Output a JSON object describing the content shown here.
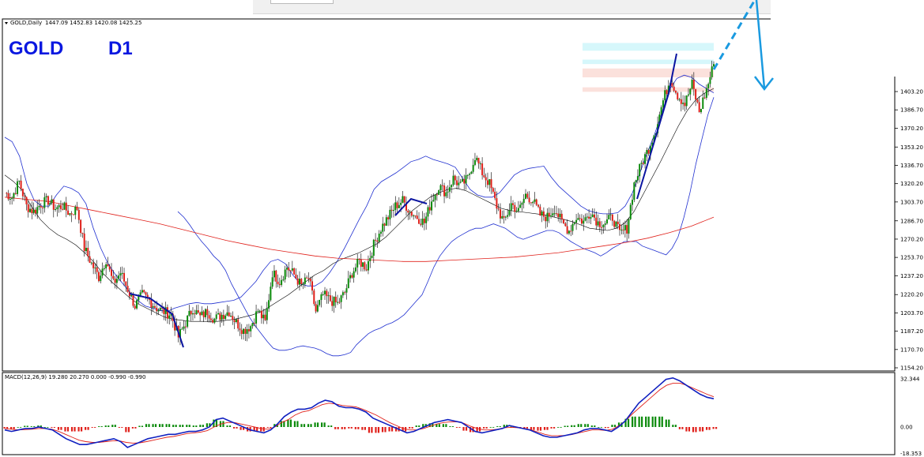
{
  "chart_data": [
    {
      "type": "candlestick",
      "symbol_label": "GOLD,Daily",
      "ohlc_label": "1447.09 1452.83 1420.08 1425.25",
      "title_symbol": "GOLD",
      "title_timeframe": "D1",
      "ylim": [
        1154.2,
        1419.7
      ],
      "y_ticks": [
        "1403.20",
        "1386.70",
        "1370.20",
        "1353.20",
        "1336.70",
        "1320.20",
        "1303.70",
        "1286.70",
        "1270.20",
        "1253.70",
        "1237.20",
        "1220.20",
        "1203.70",
        "1187.20",
        "1170.70",
        "1154.20"
      ],
      "y_tick_values": [
        1403.2,
        1386.7,
        1370.2,
        1353.2,
        1336.7,
        1320.2,
        1303.7,
        1286.7,
        1270.2,
        1253.7,
        1237.2,
        1220.2,
        1203.7,
        1187.2,
        1170.7,
        1154.2
      ],
      "colors": {
        "up": "#0a8a0a",
        "down": "#e0201a",
        "wick": "#000000",
        "bands": "#2030d0",
        "mid_band": "#000000",
        "long_ma": "#e0201a",
        "trend": "#0a14a0",
        "arrow": "#1a9ae0"
      },
      "price_path": [
        1312,
        1308,
        1322,
        1300,
        1295,
        1302,
        1305,
        1298,
        1300,
        1293,
        1298,
        1262,
        1248,
        1236,
        1252,
        1230,
        1240,
        1225,
        1210,
        1220,
        1215,
        1208,
        1205,
        1202,
        1182,
        1195,
        1208,
        1200,
        1205,
        1198,
        1202,
        1205,
        1195,
        1188,
        1192,
        1206,
        1195,
        1240,
        1232,
        1245,
        1238,
        1228,
        1235,
        1205,
        1220,
        1215,
        1212,
        1222,
        1240,
        1250,
        1245,
        1265,
        1280,
        1290,
        1300,
        1305,
        1295,
        1290,
        1285,
        1305,
        1318,
        1312,
        1325,
        1318,
        1325,
        1345,
        1330,
        1320,
        1300,
        1285,
        1302,
        1295,
        1310,
        1305,
        1292,
        1290,
        1298,
        1285,
        1278,
        1290,
        1286,
        1295,
        1285,
        1285,
        1290,
        1275,
        1280,
        1320,
        1338,
        1352,
        1370,
        1395,
        1415,
        1400,
        1392,
        1410,
        1385,
        1405,
        1428
      ],
      "upper_band": [
        1362,
        1358,
        1345,
        1320,
        1305,
        1300,
        1300,
        1310,
        1318,
        1316,
        1312,
        1302,
        1280,
        1262,
        1248,
        1238,
        1230,
        1222,
        1215,
        1210,
        1208,
        1206,
        1205,
        1208,
        1210,
        1212,
        1213,
        1212,
        1212,
        1213,
        1214,
        1215,
        1218,
        1225,
        1232,
        1242,
        1250,
        1252,
        1248,
        1238,
        1230,
        1228,
        1228,
        1232,
        1240,
        1250,
        1262,
        1275,
        1288,
        1300,
        1315,
        1322,
        1326,
        1330,
        1335,
        1340,
        1342,
        1345,
        1342,
        1340,
        1338,
        1335,
        1325,
        1315,
        1310,
        1308,
        1308,
        1312,
        1320,
        1328,
        1332,
        1334,
        1335,
        1336,
        1326,
        1318,
        1312,
        1306,
        1300,
        1296,
        1294,
        1293,
        1293,
        1294,
        1300,
        1312,
        1330,
        1348,
        1365,
        1385,
        1405,
        1415,
        1418,
        1416,
        1410,
        1406,
        1402
      ],
      "lower_band": [
        1295,
        1290,
        1283,
        1275,
        1268,
        1262,
        1255,
        1250,
        1242,
        1230,
        1220,
        1210,
        1200,
        1192,
        1185,
        1178,
        1172,
        1170,
        1170,
        1171,
        1173,
        1174,
        1173,
        1172,
        1170,
        1167,
        1165,
        1165,
        1166,
        1168,
        1175,
        1180,
        1185,
        1188,
        1190,
        1193,
        1195,
        1198,
        1202,
        1208,
        1214,
        1220,
        1232,
        1245,
        1255,
        1262,
        1268,
        1272,
        1275,
        1278,
        1280,
        1280,
        1282,
        1284,
        1282,
        1280,
        1276,
        1272,
        1270,
        1272,
        1274,
        1276,
        1278,
        1278,
        1276,
        1272,
        1268,
        1265,
        1262,
        1260,
        1258,
        1255,
        1258,
        1262,
        1265,
        1268,
        1268,
        1268,
        1264,
        1262,
        1260,
        1258,
        1256,
        1262,
        1272,
        1290,
        1312,
        1338,
        1360,
        1382,
        1398
      ],
      "mid_band": [
        1328,
        1322,
        1314,
        1300,
        1288,
        1280,
        1274,
        1270,
        1265,
        1258,
        1250,
        1240,
        1232,
        1225,
        1218,
        1212,
        1208,
        1204,
        1200,
        1198,
        1197,
        1196,
        1196,
        1196,
        1196,
        1197,
        1198,
        1200,
        1202,
        1205,
        1210,
        1215,
        1220,
        1226,
        1232,
        1238,
        1242,
        1248,
        1252,
        1255,
        1258,
        1262,
        1266,
        1272,
        1280,
        1288,
        1296,
        1302,
        1308,
        1312,
        1315,
        1316,
        1314,
        1310,
        1306,
        1302,
        1298,
        1296,
        1295,
        1294,
        1293,
        1292,
        1290,
        1288,
        1286,
        1283,
        1280,
        1279,
        1278,
        1280,
        1285,
        1295,
        1310,
        1325,
        1340,
        1356,
        1372,
        1386,
        1396,
        1402,
        1406
      ],
      "long_ma": [
        1308,
        1306,
        1304,
        1300,
        1296,
        1292,
        1288,
        1284,
        1279,
        1274,
        1269,
        1265,
        1261,
        1258,
        1255,
        1253,
        1252,
        1251,
        1250,
        1250,
        1251,
        1252,
        1253,
        1254,
        1256,
        1258,
        1261,
        1264,
        1267,
        1271,
        1276,
        1282,
        1290
      ],
      "fib_zones": [
        {
          "from": 1447,
          "to": 1440,
          "color": "#d6f7fb"
        },
        {
          "from": 1432,
          "to": 1428,
          "color": "#d6f7fb"
        },
        {
          "from": 1424,
          "to": 1416,
          "color": "#fbe1dc"
        },
        {
          "from": 1407,
          "to": 1403,
          "color": "#fbe1dc"
        }
      ]
    },
    {
      "type": "macd",
      "label": "MACD(12,26,9) 19.280 20.270 0.000 -0.990 -0.990",
      "ylim": [
        -18.353,
        32.344
      ],
      "y_ticks": [
        "32.344",
        "0.00",
        "-18.353"
      ],
      "y_tick_values": [
        32.344,
        0.0,
        -18.353
      ],
      "colors": {
        "macd": "#1020c0",
        "signal": "#e0201a",
        "hist_up": "#0a8a0a",
        "hist_down": "#e0201a"
      },
      "macd_line": [
        -2,
        -3,
        -2,
        -1,
        -1,
        0,
        -1,
        -2,
        -5,
        -8,
        -10,
        -12,
        -12,
        -11,
        -10,
        -9,
        -8,
        -10,
        -14,
        -12,
        -10,
        -8,
        -7,
        -6,
        -5,
        -5,
        -4,
        -3,
        -3,
        -2,
        0,
        5,
        6,
        4,
        2,
        0,
        -2,
        -3,
        -4,
        -2,
        2,
        7,
        10,
        12,
        12,
        13,
        16,
        18,
        17,
        14,
        13,
        13,
        12,
        10,
        6,
        4,
        2,
        0,
        -2,
        -4,
        -3,
        -1,
        1,
        3,
        4,
        5,
        4,
        3,
        0,
        -3,
        -4,
        -3,
        -2,
        -1,
        1,
        0,
        -1,
        -2,
        -4,
        -6,
        -7,
        -7,
        -6,
        -5,
        -4,
        -2,
        -1,
        -1,
        -2,
        -3,
        0,
        4,
        10,
        16,
        20,
        24,
        28,
        32,
        33,
        31,
        28,
        25,
        22,
        20,
        19
      ],
      "signal_line": [
        -1,
        -1.5,
        -2,
        -1.8,
        -1.5,
        -1,
        -1,
        -1.5,
        -3,
        -5,
        -7,
        -9,
        -10,
        -10.5,
        -10.5,
        -10,
        -9.5,
        -9.5,
        -10.5,
        -11,
        -10.8,
        -10,
        -9,
        -8,
        -7,
        -6.5,
        -5.5,
        -4.5,
        -4,
        -3.5,
        -2.5,
        0,
        2,
        3,
        3,
        2,
        1,
        0,
        -1,
        -1.5,
        0,
        3,
        5,
        8,
        10,
        11,
        13,
        15,
        16,
        15.5,
        14.5,
        14,
        13.5,
        12,
        10,
        8,
        5.5,
        3,
        1,
        -1,
        -2,
        -2,
        -1,
        0.5,
        2,
        3,
        3.5,
        3.5,
        2.5,
        0.5,
        -1,
        -2,
        -2,
        -1.5,
        -0.5,
        -0.2,
        -0.5,
        -1,
        -2,
        -3.5,
        -5,
        -6,
        -6,
        -5.8,
        -5.2,
        -4,
        -3,
        -2,
        -2,
        -2.3,
        -1.5,
        1,
        4.5,
        9,
        13,
        17,
        21,
        25,
        28,
        29.5,
        29.5,
        28,
        26,
        24,
        22,
        20.3
      ],
      "histogram": [
        -1,
        -1.5,
        0,
        0.8,
        0.5,
        1,
        0,
        -0.5,
        -2,
        -3,
        -3,
        -3,
        -2,
        -0.5,
        0.5,
        1,
        1.5,
        -0.5,
        -3.5,
        -1,
        0.8,
        2,
        2,
        2,
        2,
        1.5,
        1.5,
        1.5,
        1,
        1.5,
        2.5,
        5,
        4,
        1,
        -1,
        -2,
        -3,
        -3,
        -3,
        -0.5,
        2,
        4,
        5,
        4,
        2,
        2,
        3,
        3,
        1,
        -1.5,
        -1.5,
        -1,
        -1.5,
        -2,
        -4,
        -4,
        -3.5,
        -3,
        -3,
        -3,
        -1,
        1,
        2,
        2.5,
        2,
        2,
        0.5,
        -0.5,
        -2.5,
        -3.5,
        -3,
        -1,
        0,
        0.5,
        1.5,
        0.2,
        -0.5,
        -1,
        -2,
        -2.5,
        -2,
        -1,
        0,
        0.8,
        1.2,
        2,
        2,
        1,
        0,
        -0.7,
        1.5,
        3,
        5.5,
        7,
        7,
        7,
        7,
        7,
        5,
        1.5,
        -1.5,
        -3,
        -3.5,
        -3,
        -2,
        -1.3
      ]
    }
  ]
}
